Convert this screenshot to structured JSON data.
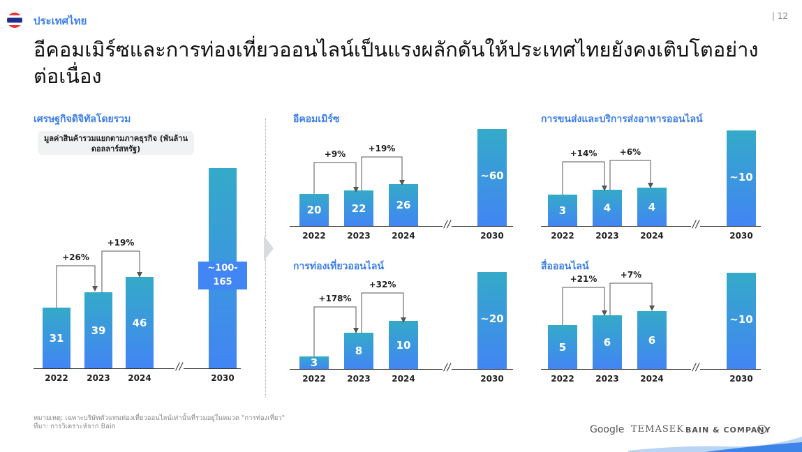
{
  "header": {
    "country": "ประเทศไทย",
    "page_number": "| 12",
    "title": "อีคอมเมิร์ซและการท่องเที่ยวออนไลน์เป็นแรงผลักดันให้ประเทศไทยยังคงเติบโตอย่างต่อเนื่อง",
    "flag_icon": "thailand-flag-icon"
  },
  "chart_data": [
    {
      "type": "bar",
      "title": "เศรษฐกิจดิจิทัลโดยรวม",
      "subtitle": "มูลค่าสินค้ารวมแยกตามภาคธุรกิจ (พันล้านดอลลาร์สหรัฐ)",
      "categories": [
        "2022",
        "2023",
        "2024",
        "2030"
      ],
      "values": [
        31,
        39,
        46,
        "~100-165"
      ],
      "growth": [
        "+26%",
        "+19%"
      ],
      "bar_color": "#4285f4"
    },
    {
      "type": "bar",
      "title": "อีคอมเมิร์ซ",
      "categories": [
        "2022",
        "2023",
        "2024",
        "2030"
      ],
      "values": [
        20,
        22,
        26,
        "~60"
      ],
      "growth": [
        "+9%",
        "+19%"
      ]
    },
    {
      "type": "bar",
      "title": "การขนส่งและบริการส่งอาหารออนไลน์",
      "categories": [
        "2022",
        "2023",
        "2024",
        "2030"
      ],
      "values": [
        3,
        4,
        4,
        "~10"
      ],
      "growth": [
        "+14%",
        "+6%"
      ]
    },
    {
      "type": "bar",
      "title": "การท่องเที่ยวออนไลน์",
      "categories": [
        "2022",
        "2023",
        "2024",
        "2030"
      ],
      "values": [
        3,
        8,
        10,
        "~20"
      ],
      "growth": [
        "+178%",
        "+32%"
      ]
    },
    {
      "type": "bar",
      "title": "สื่อออนไลน์",
      "categories": [
        "2022",
        "2023",
        "2024",
        "2030"
      ],
      "values": [
        5,
        6,
        6,
        "~10"
      ],
      "growth": [
        "+21%",
        "+7%"
      ]
    }
  ],
  "footer": {
    "note": "หมายเหตุ: เฉพาะบริษัทตัวแทนท่องเที่ยวออนไลน์เท่านั้นที่รวมอยู่ในหมวด \"การท่องเที่ยว\"",
    "source": "ที่มา: การวิเคราะห์จาก Bain",
    "logos": [
      "Google",
      "TEMASEK",
      "BAIN & COMPANY"
    ]
  }
}
